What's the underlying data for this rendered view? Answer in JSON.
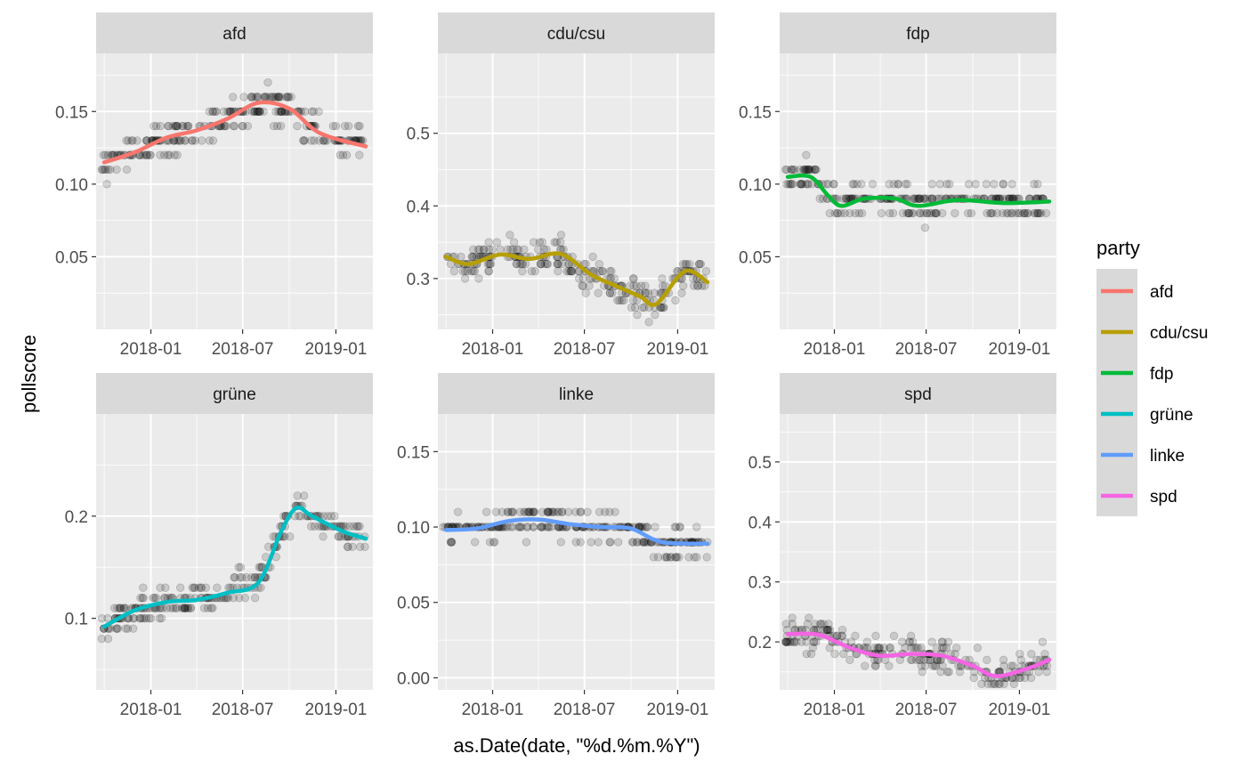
{
  "figure": {
    "xlabel": "as.Date(date, \"%d.%m.%Y\")",
    "ylabel": "pollscore",
    "legend_title": "party",
    "legend_position": "right"
  },
  "chart_data": {
    "type": "scatter",
    "facets": [
      "afd",
      "cdu/csu",
      "fdp",
      "grüne",
      "linke",
      "spd"
    ],
    "x_ticks": [
      "2018-01",
      "2018-07",
      "2019-01"
    ],
    "x_range": [
      "2017-09-15",
      "2019-03-15"
    ],
    "grid": true,
    "scales": "free_y",
    "series": [
      {
        "name": "afd",
        "color": "#F8766D",
        "ylim": [
          0,
          0.19
        ],
        "y_ticks": [
          0.05,
          0.1,
          0.15
        ],
        "points_range": [
          0.06,
          0.18
        ],
        "trend_x": [
          "2017-10-01",
          "2017-12-01",
          "2018-02-01",
          "2018-04-01",
          "2018-06-01",
          "2018-08-01",
          "2018-10-01",
          "2018-12-01",
          "2019-03-01"
        ],
        "trend_y": [
          0.115,
          0.122,
          0.132,
          0.137,
          0.145,
          0.156,
          0.152,
          0.135,
          0.126
        ]
      },
      {
        "name": "cdu/csu",
        "color": "#B79F00",
        "ylim": [
          0.23,
          0.61
        ],
        "y_ticks": [
          0.3,
          0.4,
          0.5
        ],
        "points_range": [
          0.24,
          0.38
        ],
        "trend_x": [
          "2017-10-01",
          "2017-11-15",
          "2018-01-15",
          "2018-03-15",
          "2018-05-15",
          "2018-07-15",
          "2018-09-01",
          "2018-10-20",
          "2018-11-20",
          "2019-01-15",
          "2019-03-01"
        ],
        "trend_y": [
          0.33,
          0.32,
          0.333,
          0.327,
          0.334,
          0.305,
          0.29,
          0.275,
          0.265,
          0.31,
          0.295
        ]
      },
      {
        "name": "fdp",
        "color": "#00BA38",
        "ylim": [
          0,
          0.19
        ],
        "y_ticks": [
          0.05,
          0.1,
          0.15
        ],
        "points_range": [
          0.06,
          0.13
        ],
        "trend_x": [
          "2017-10-01",
          "2017-11-15",
          "2017-12-20",
          "2018-01-15",
          "2018-03-01",
          "2018-05-01",
          "2018-06-15",
          "2018-09-01",
          "2018-12-01",
          "2019-03-01"
        ],
        "trend_y": [
          0.105,
          0.105,
          0.092,
          0.085,
          0.09,
          0.09,
          0.085,
          0.089,
          0.087,
          0.088
        ]
      },
      {
        "name": "grüne",
        "color": "#00BFC4",
        "ylim": [
          0.03,
          0.3
        ],
        "y_ticks": [
          0.1,
          0.2
        ],
        "points_range": [
          0.07,
          0.26
        ],
        "trend_x": [
          "2017-10-01",
          "2017-12-01",
          "2018-02-01",
          "2018-04-01",
          "2018-06-01",
          "2018-08-01",
          "2018-09-15",
          "2018-10-15",
          "2018-11-15",
          "2019-01-15",
          "2019-03-01"
        ],
        "trend_y": [
          0.092,
          0.108,
          0.116,
          0.118,
          0.125,
          0.135,
          0.185,
          0.208,
          0.2,
          0.185,
          0.178
        ]
      },
      {
        "name": "linke",
        "color": "#619CFF",
        "ylim": [
          -0.008,
          0.175
        ],
        "y_ticks": [
          0.0,
          0.05,
          0.1,
          0.15
        ],
        "points_range": [
          0.06,
          0.12
        ],
        "trend_x": [
          "2017-10-01",
          "2017-12-01",
          "2018-02-01",
          "2018-04-01",
          "2018-06-01",
          "2018-08-01",
          "2018-10-01",
          "2018-12-01",
          "2019-03-01"
        ],
        "trend_y": [
          0.098,
          0.099,
          0.104,
          0.105,
          0.102,
          0.1,
          0.099,
          0.09,
          0.089
        ]
      },
      {
        "name": "spd",
        "color": "#F564E3",
        "ylim": [
          0.12,
          0.58
        ],
        "y_ticks": [
          0.2,
          0.3,
          0.4,
          0.5
        ],
        "points_range": [
          0.13,
          0.29
        ],
        "trend_x": [
          "2017-10-01",
          "2017-12-01",
          "2018-02-01",
          "2018-04-01",
          "2018-06-01",
          "2018-08-01",
          "2018-10-01",
          "2018-11-15",
          "2019-01-15",
          "2019-03-01"
        ],
        "trend_y": [
          0.213,
          0.212,
          0.19,
          0.177,
          0.18,
          0.177,
          0.16,
          0.143,
          0.155,
          0.17
        ]
      }
    ]
  }
}
